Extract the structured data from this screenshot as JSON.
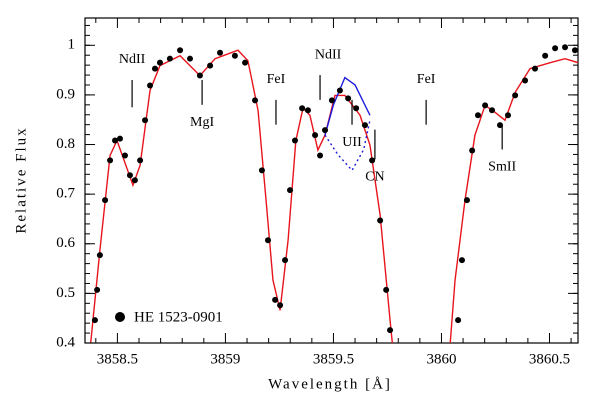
{
  "chart_data": {
    "type": "spectrum",
    "xlabel": "Wavelength [Å]",
    "ylabel": "Relative Flux",
    "xlim": [
      3858.35,
      3860.632
    ],
    "ylim": [
      0.4,
      1.055
    ],
    "xticks": [
      3858.5,
      3859,
      3859.5,
      3860,
      3860.5
    ],
    "yticks": [
      0.4,
      0.5,
      0.6,
      0.7,
      0.8,
      0.9,
      1
    ],
    "legend": "lower left",
    "series": [
      {
        "name": "HE 1523-0901",
        "color": "#000000",
        "style": "points",
        "x": [
          3858.396,
          3858.406,
          3858.419,
          3858.443,
          3858.466,
          3858.489,
          3858.512,
          3858.535,
          3858.558,
          3858.581,
          3858.605,
          3858.628,
          3858.651,
          3858.674,
          3858.697,
          3858.743,
          3858.79,
          3858.836,
          3858.882,
          3858.929,
          3858.975,
          3859.044,
          3859.091,
          3859.137,
          3859.169,
          3859.197,
          3859.23,
          3859.253,
          3859.276,
          3859.299,
          3859.322,
          3859.355,
          3859.382,
          3859.415,
          3859.438,
          3859.461,
          3859.493,
          3859.53,
          3859.568,
          3859.605,
          3859.646,
          3859.679,
          3859.716,
          3859.744,
          3859.762,
          3860.077,
          3860.095,
          3860.118,
          3860.142,
          3860.169,
          3860.202,
          3860.234,
          3860.271,
          3860.308,
          3860.341,
          3860.387,
          3860.433,
          3860.48,
          3860.526,
          3860.572,
          3860.618
        ],
        "values": [
          0.446,
          0.507,
          0.577,
          0.688,
          0.768,
          0.808,
          0.812,
          0.778,
          0.738,
          0.728,
          0.768,
          0.849,
          0.919,
          0.953,
          0.965,
          0.973,
          0.99,
          0.973,
          0.939,
          0.959,
          0.985,
          0.979,
          0.965,
          0.889,
          0.748,
          0.607,
          0.487,
          0.476,
          0.567,
          0.708,
          0.808,
          0.873,
          0.869,
          0.819,
          0.778,
          0.829,
          0.889,
          0.909,
          0.893,
          0.873,
          0.839,
          0.768,
          0.647,
          0.507,
          0.426,
          0.446,
          0.567,
          0.688,
          0.788,
          0.859,
          0.879,
          0.869,
          0.839,
          0.859,
          0.899,
          0.929,
          0.953,
          0.979,
          0.994,
          0.996,
          0.99
        ]
      },
      {
        "color": "#e8141c",
        "style": "line",
        "x": [
          3858.364,
          3858.419,
          3858.466,
          3858.498,
          3858.531,
          3858.572,
          3858.605,
          3858.651,
          3858.697,
          3858.79,
          3858.882,
          3858.952,
          3859.058,
          3859.104,
          3859.151,
          3859.188,
          3859.22,
          3859.253,
          3859.29,
          3859.326,
          3859.359,
          3859.391,
          3859.428,
          3859.461,
          3859.507,
          3859.553,
          3859.623,
          3859.669,
          3859.716,
          3859.762,
          3859.785,
          3859.9,
          3860.031,
          3860.063,
          3860.109,
          3860.155,
          3860.202,
          3860.248,
          3860.294,
          3860.341,
          3860.41,
          3860.503,
          3860.572,
          3860.632
        ],
        "values": [
          0.346,
          0.587,
          0.778,
          0.808,
          0.768,
          0.718,
          0.758,
          0.909,
          0.959,
          0.979,
          0.939,
          0.973,
          0.99,
          0.969,
          0.869,
          0.688,
          0.527,
          0.466,
          0.607,
          0.808,
          0.873,
          0.859,
          0.789,
          0.819,
          0.899,
          0.899,
          0.859,
          0.799,
          0.658,
          0.446,
          0.346,
          null,
          0.346,
          0.527,
          0.688,
          0.819,
          0.879,
          0.865,
          0.849,
          0.905,
          0.953,
          0.965,
          0.973,
          0.965
        ]
      },
      {
        "color": "#1a1adc",
        "style": "line",
        "x": [
          3859.461,
          3859.5,
          3859.553,
          3859.6,
          3859.669
        ],
        "values": [
          0.819,
          0.88,
          0.935,
          0.92,
          0.859
        ]
      },
      {
        "color": "#1a1adc",
        "style": "dotted",
        "x": [
          3859.461,
          3859.52,
          3859.586,
          3859.64,
          3859.669
        ],
        "values": [
          0.819,
          0.78,
          0.748,
          0.79,
          0.849
        ]
      }
    ],
    "lines": [
      {
        "label": "NdII",
        "x": 3858.568
      },
      {
        "label": "MgI",
        "x": 3858.892
      },
      {
        "label": "FeI",
        "x": 3859.234
      },
      {
        "label": "NdII",
        "x": 3859.438
      },
      {
        "label": "UII",
        "x": 3859.586
      },
      {
        "label": "CN",
        "x": 3859.692
      },
      {
        "label": "FeI",
        "x": 3859.929
      },
      {
        "label": "SmII",
        "x": 3860.281
      }
    ]
  }
}
